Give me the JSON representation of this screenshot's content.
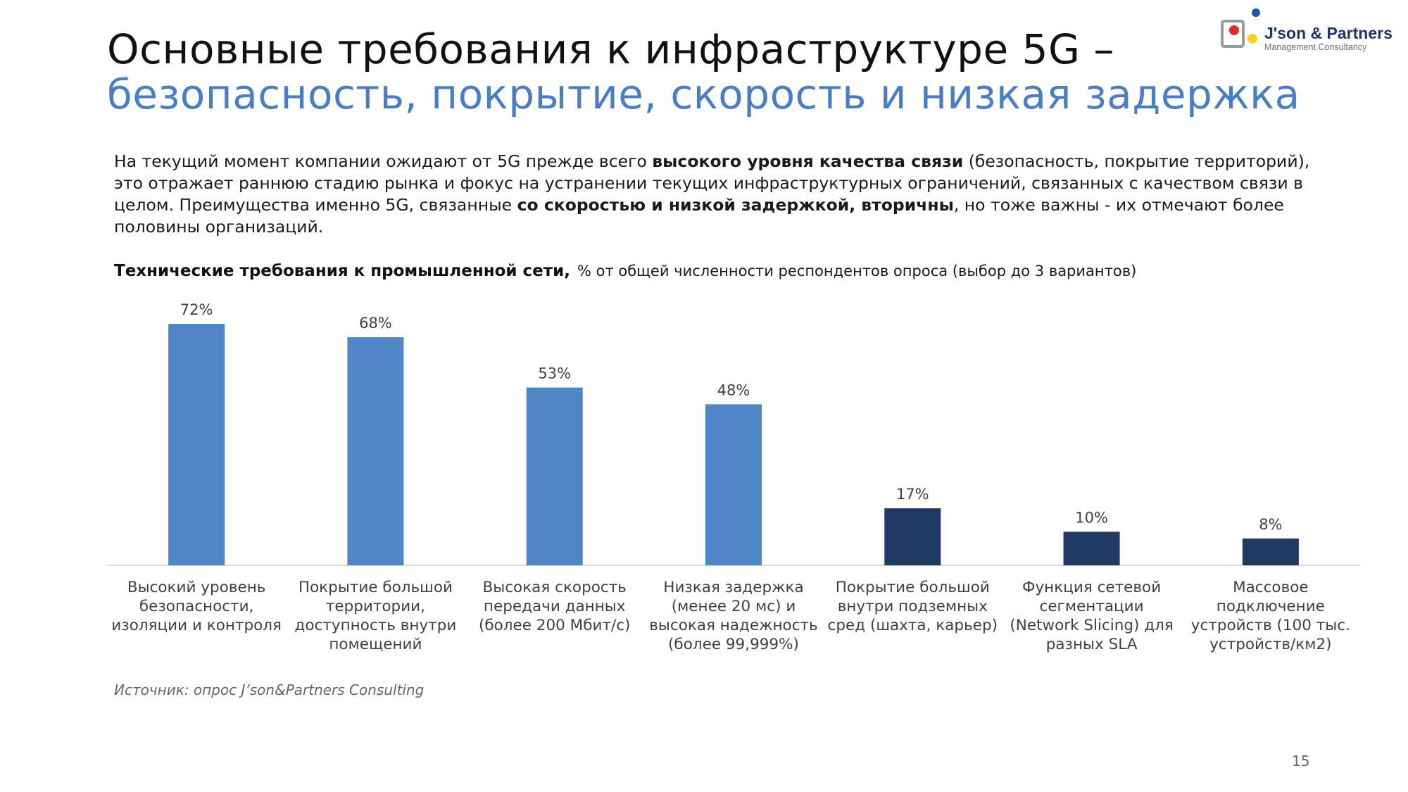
{
  "slide": {
    "title_line1": "Основные требования к инфраструктуре 5G –",
    "title_line2": "безопасность, покрытие, скорость и низкая задержка",
    "intro_parts": [
      {
        "text": "На текущий момент компании ожидают от 5G прежде всего ",
        "bold": false
      },
      {
        "text": "высокого уровня качества связи",
        "bold": true
      },
      {
        "text": " (безопасность, покрытие территорий), это отражает раннюю стадию рынка и фокус на устранении текущих инфраструктурных ограничений, связанных с качеством связи в целом. Преимущества именно 5G, связанные ",
        "bold": false
      },
      {
        "text": "со скоростью и низкой задержкой, вторичны",
        "bold": true
      },
      {
        "text": ", но тоже важны - их отмечают более половины организаций.",
        "bold": false
      }
    ],
    "source": "Источник: опрос J’son&Partners Consulting",
    "page_number": "15"
  },
  "logo": {
    "name": "J'son & Partners",
    "tagline": "Management Consultancy"
  },
  "chart_data": {
    "type": "bar",
    "title": "Технические требования к промышленной сети,",
    "subtitle": "% от общей численности респондентов опроса (выбор до 3 вариантов)",
    "xlabel": "",
    "ylabel": "",
    "ylim": [
      0,
      72
    ],
    "grid": false,
    "legend": "none",
    "categories": [
      [
        "Высокий уровень",
        "безопасности,",
        "изоляции и контроля"
      ],
      [
        "Покрытие большой",
        "территории,",
        "доступность внутри",
        "помещений"
      ],
      [
        "Высокая скорость",
        "передачи данных",
        "(более 200 Мбит/с)"
      ],
      [
        "Низкая задержка",
        "(менее 20 мс) и",
        "высокая надежность",
        "(более 99,999%)"
      ],
      [
        "Покрытие большой",
        "внутри подземных",
        "сред (шахта, карьер)"
      ],
      [
        "Функция сетевой",
        "сегментации",
        "(Network Slicing) для",
        "разных SLA"
      ],
      [
        "Массовое",
        "подключение",
        "устройств (100 тыс.",
        "устройств/км2)"
      ]
    ],
    "values": [
      72,
      68,
      53,
      48,
      17,
      10,
      8
    ],
    "data_labels": [
      "72%",
      "68%",
      "53%",
      "48%",
      "17%",
      "10%",
      "8%"
    ],
    "bar_colors": [
      "#4e86c8",
      "#4e86c8",
      "#4e86c8",
      "#4e86c8",
      "#1f3864",
      "#1f3864",
      "#1f3864"
    ],
    "label_color": "#404040",
    "axis_color": "#d9d9d9"
  }
}
